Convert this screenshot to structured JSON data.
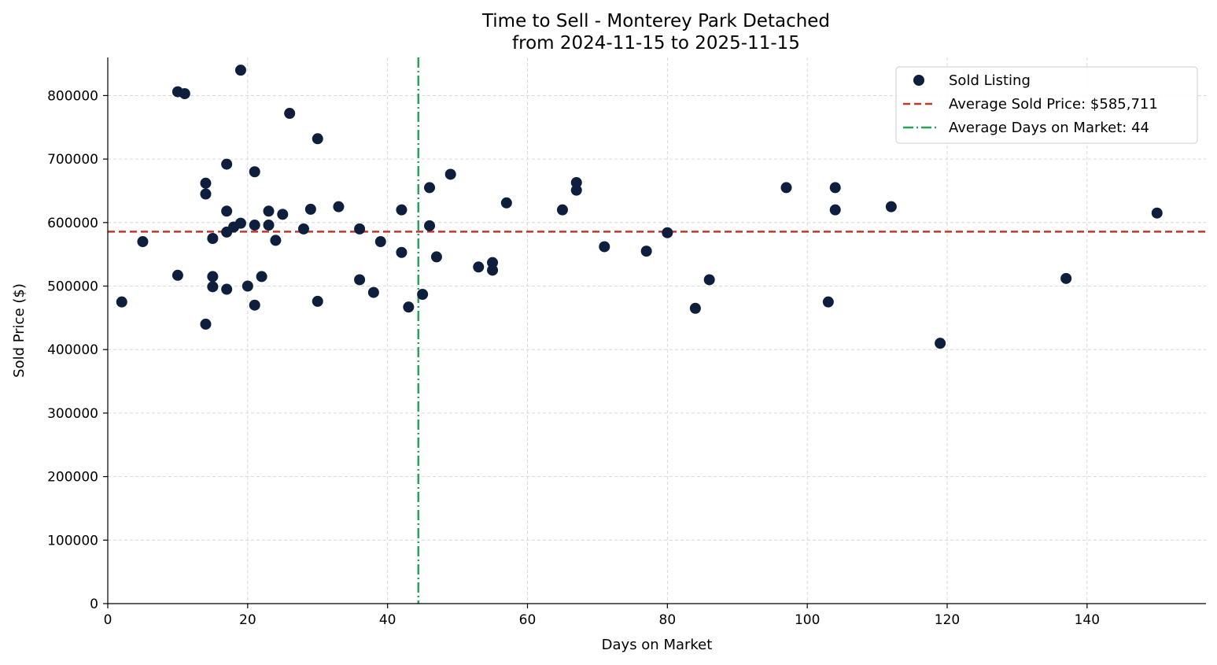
{
  "chart_data": {
    "type": "scatter",
    "title": "Time to Sell - Monterey Park Detached",
    "subtitle": "from 2024-11-15 to 2025-11-15",
    "xlabel": "Days on Market",
    "ylabel": "Sold Price ($)",
    "xlim": [
      0,
      157
    ],
    "ylim": [
      0,
      860000
    ],
    "x_ticks": [
      0,
      20,
      40,
      60,
      80,
      100,
      120,
      140
    ],
    "y_ticks": [
      0,
      100000,
      200000,
      300000,
      400000,
      500000,
      600000,
      700000,
      800000
    ],
    "x_tick_labels": [
      "0",
      "20",
      "40",
      "60",
      "80",
      "100",
      "120",
      "140"
    ],
    "y_tick_labels": [
      "0",
      "100000",
      "200000",
      "300000",
      "400000",
      "500000",
      "600000",
      "700000",
      "800000"
    ],
    "grid": true,
    "legend_position": "top-right",
    "colors": {
      "points": "#0d1f3c",
      "avg_price": "#c0392b",
      "avg_days": "#27a35a"
    },
    "series": [
      {
        "name": "Sold Listing",
        "points": [
          {
            "x": 2,
            "y": 475000
          },
          {
            "x": 5,
            "y": 570000
          },
          {
            "x": 10,
            "y": 806000
          },
          {
            "x": 11,
            "y": 803000
          },
          {
            "x": 10,
            "y": 517000
          },
          {
            "x": 14,
            "y": 662000
          },
          {
            "x": 14,
            "y": 645000
          },
          {
            "x": 14,
            "y": 440000
          },
          {
            "x": 15,
            "y": 575000
          },
          {
            "x": 15,
            "y": 515000
          },
          {
            "x": 15,
            "y": 499000
          },
          {
            "x": 17,
            "y": 692000
          },
          {
            "x": 17,
            "y": 618000
          },
          {
            "x": 17,
            "y": 585000
          },
          {
            "x": 17,
            "y": 495000
          },
          {
            "x": 18,
            "y": 593000
          },
          {
            "x": 19,
            "y": 840000
          },
          {
            "x": 19,
            "y": 599000
          },
          {
            "x": 20,
            "y": 500000
          },
          {
            "x": 21,
            "y": 680000
          },
          {
            "x": 21,
            "y": 596000
          },
          {
            "x": 21,
            "y": 470000
          },
          {
            "x": 22,
            "y": 515000
          },
          {
            "x": 23,
            "y": 618000
          },
          {
            "x": 23,
            "y": 596000
          },
          {
            "x": 24,
            "y": 572000
          },
          {
            "x": 25,
            "y": 613000
          },
          {
            "x": 26,
            "y": 772000
          },
          {
            "x": 28,
            "y": 590000
          },
          {
            "x": 29,
            "y": 621000
          },
          {
            "x": 30,
            "y": 732000
          },
          {
            "x": 30,
            "y": 476000
          },
          {
            "x": 33,
            "y": 625000
          },
          {
            "x": 36,
            "y": 590000
          },
          {
            "x": 36,
            "y": 510000
          },
          {
            "x": 38,
            "y": 490000
          },
          {
            "x": 39,
            "y": 570000
          },
          {
            "x": 42,
            "y": 620000
          },
          {
            "x": 42,
            "y": 553000
          },
          {
            "x": 43,
            "y": 467000
          },
          {
            "x": 45,
            "y": 487000
          },
          {
            "x": 46,
            "y": 655000
          },
          {
            "x": 46,
            "y": 595000
          },
          {
            "x": 47,
            "y": 546000
          },
          {
            "x": 49,
            "y": 676000
          },
          {
            "x": 53,
            "y": 530000
          },
          {
            "x": 55,
            "y": 537000
          },
          {
            "x": 55,
            "y": 525000
          },
          {
            "x": 57,
            "y": 631000
          },
          {
            "x": 65,
            "y": 620000
          },
          {
            "x": 67,
            "y": 663000
          },
          {
            "x": 67,
            "y": 651000
          },
          {
            "x": 71,
            "y": 562000
          },
          {
            "x": 77,
            "y": 555000
          },
          {
            "x": 80,
            "y": 584000
          },
          {
            "x": 84,
            "y": 465000
          },
          {
            "x": 86,
            "y": 510000
          },
          {
            "x": 97,
            "y": 655000
          },
          {
            "x": 103,
            "y": 475000
          },
          {
            "x": 104,
            "y": 655000
          },
          {
            "x": 104,
            "y": 620000
          },
          {
            "x": 112,
            "y": 625000
          },
          {
            "x": 119,
            "y": 410000
          },
          {
            "x": 137,
            "y": 512000
          },
          {
            "x": 150,
            "y": 615000
          }
        ]
      }
    ],
    "reference_lines": {
      "avg_price": {
        "value": 585711,
        "label": "Average Sold Price: $585,711"
      },
      "avg_days": {
        "value": 44.4,
        "label": "Average Days on Market: 44"
      }
    }
  }
}
